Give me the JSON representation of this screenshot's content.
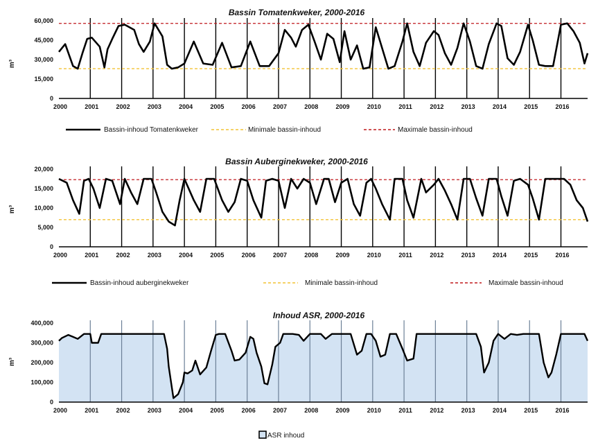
{
  "chart_data": [
    {
      "type": "line",
      "title_prefix": "Bassin ",
      "title_italic": "Tomatenkweker",
      "title_suffix": ", 2000-2016",
      "ylabel": "m³",
      "ylim": [
        0,
        60000
      ],
      "yticks": [
        "0",
        "15,000",
        "30,000",
        "45,000",
        "60,000"
      ],
      "ytick_values": [
        0,
        15000,
        30000,
        45000,
        60000
      ],
      "xlabels": [
        "2000",
        "2001",
        "2002",
        "2003",
        "2004",
        "2005",
        "2006",
        "2007",
        "2008",
        "2009",
        "2010",
        "2011",
        "2012",
        "2013",
        "2014",
        "2015",
        "2016"
      ],
      "xrange": [
        2000,
        2016.85
      ],
      "grid_vertical": true,
      "series": [
        {
          "name": "Bassin-inhoud Tomatenkweker",
          "color": "#000000",
          "style": "solid",
          "x": [
            2000,
            2000.2,
            2000.45,
            2000.6,
            2000.75,
            2000.9,
            2001.05,
            2001.3,
            2001.45,
            2001.55,
            2001.7,
            2001.9,
            2002.1,
            2002.4,
            2002.55,
            2002.7,
            2002.9,
            2003.05,
            2003.3,
            2003.45,
            2003.6,
            2003.8,
            2004.0,
            2004.3,
            2004.6,
            2004.9,
            2005.2,
            2005.5,
            2005.8,
            2006.1,
            2006.4,
            2006.7,
            2007.0,
            2007.2,
            2007.4,
            2007.55,
            2007.75,
            2007.95,
            2008.15,
            2008.35,
            2008.55,
            2008.75,
            2008.95,
            2009.1,
            2009.3,
            2009.5,
            2009.7,
            2009.9,
            2010.1,
            2010.3,
            2010.5,
            2010.7,
            2010.95,
            2011.1,
            2011.3,
            2011.5,
            2011.7,
            2011.95,
            2012.1,
            2012.3,
            2012.5,
            2012.7,
            2012.9,
            2013.1,
            2013.3,
            2013.5,
            2013.7,
            2013.95,
            2014.1,
            2014.3,
            2014.5,
            2014.7,
            2014.95,
            2015.1,
            2015.3,
            2015.5,
            2015.75,
            2016.0,
            2016.2,
            2016.4,
            2016.6,
            2016.75,
            2016.85
          ],
          "y": [
            36000,
            42000,
            25000,
            23000,
            35000,
            46000,
            47000,
            40000,
            24000,
            38000,
            46000,
            56000,
            57000,
            53000,
            42000,
            36000,
            44000,
            58000,
            48000,
            26000,
            23000,
            24000,
            27000,
            44000,
            27000,
            26000,
            43000,
            24000,
            25000,
            44000,
            25000,
            25000,
            35000,
            53000,
            47000,
            40000,
            53000,
            57000,
            44000,
            30000,
            50000,
            46000,
            28000,
            52000,
            30000,
            41000,
            23000,
            24000,
            55000,
            39000,
            23000,
            25000,
            44000,
            58000,
            36000,
            25000,
            43000,
            52000,
            49000,
            35000,
            26000,
            39000,
            58000,
            44000,
            25000,
            23000,
            42000,
            58000,
            56000,
            31000,
            26000,
            36000,
            57000,
            45000,
            26000,
            25000,
            25000,
            57000,
            58000,
            52000,
            43000,
            27000,
            35000
          ]
        },
        {
          "name": "Minimale bassin-inhoud",
          "color": "#f2c233",
          "style": "dashed",
          "constant": 23000
        },
        {
          "name": "Maximale bassin-inhoud",
          "color": "#c0181c",
          "style": "dashed",
          "constant": 58000
        }
      ]
    },
    {
      "type": "line",
      "title_prefix": "Bassin ",
      "title_italic": "Auberginekweker",
      "title_suffix": ", 2000-2016",
      "ylabel": "m³",
      "ylim": [
        0,
        20000
      ],
      "yticks": [
        "0",
        "5,000",
        "10,000",
        "15,000",
        "20,000"
      ],
      "ytick_values": [
        0,
        5000,
        10000,
        15000,
        20000
      ],
      "xlabels": [
        "2000",
        "2001",
        "2002",
        "2003",
        "2004",
        "2005",
        "2006",
        "2007",
        "2008",
        "2009",
        "2010",
        "2011",
        "2012",
        "2013",
        "2014",
        "2015",
        "2016"
      ],
      "xrange": [
        2000,
        2016.85
      ],
      "grid_vertical": true,
      "series": [
        {
          "name": "Bassin-inhoud  auberginekweker",
          "color": "#000000",
          "style": "solid",
          "x": [
            2000,
            2000.25,
            2000.45,
            2000.65,
            2000.8,
            2000.95,
            2001.1,
            2001.3,
            2001.5,
            2001.7,
            2001.95,
            2002.1,
            2002.3,
            2002.5,
            2002.7,
            2002.95,
            2003.1,
            2003.3,
            2003.5,
            2003.7,
            2003.85,
            2004.0,
            2004.3,
            2004.5,
            2004.7,
            2004.95,
            2005.2,
            2005.4,
            2005.6,
            2005.8,
            2006.0,
            2006.2,
            2006.45,
            2006.6,
            2006.8,
            2007.0,
            2007.2,
            2007.4,
            2007.6,
            2007.8,
            2008.0,
            2008.2,
            2008.45,
            2008.6,
            2008.8,
            2009.0,
            2009.2,
            2009.4,
            2009.6,
            2009.8,
            2009.95,
            2010.1,
            2010.3,
            2010.55,
            2010.7,
            2010.95,
            2011.1,
            2011.3,
            2011.55,
            2011.7,
            2011.95,
            2012.1,
            2012.3,
            2012.5,
            2012.7,
            2012.9,
            2013.1,
            2013.3,
            2013.5,
            2013.7,
            2013.95,
            2014.1,
            2014.3,
            2014.5,
            2014.7,
            2014.95,
            2015.1,
            2015.3,
            2015.5,
            2015.7,
            2015.95,
            2016.1,
            2016.3,
            2016.5,
            2016.7,
            2016.85
          ],
          "y": [
            17500,
            16500,
            12000,
            8500,
            17000,
            17500,
            15000,
            10000,
            17500,
            17000,
            11000,
            17500,
            14000,
            11000,
            17500,
            17500,
            14000,
            9000,
            6500,
            5500,
            12000,
            17500,
            12000,
            9000,
            17500,
            17500,
            12000,
            9000,
            11500,
            17500,
            17000,
            12000,
            7500,
            17000,
            17500,
            17000,
            10000,
            17500,
            15000,
            17500,
            16500,
            11000,
            17500,
            17500,
            11500,
            16500,
            17500,
            11000,
            8000,
            16500,
            17500,
            15000,
            11000,
            7000,
            17500,
            17500,
            12000,
            7500,
            17500,
            14000,
            16000,
            17500,
            14500,
            11000,
            7000,
            17500,
            17500,
            12500,
            8000,
            17500,
            17500,
            13000,
            8000,
            17000,
            17500,
            16000,
            12500,
            7000,
            17500,
            17500,
            17500,
            17500,
            16000,
            12000,
            10000,
            6500
          ]
        },
        {
          "name": "Minimale bassin-inhoud",
          "color": "#f2c233",
          "style": "dashed",
          "constant": 7000
        },
        {
          "name": "Maximale bassin-inhoud",
          "color": "#c0181c",
          "style": "dashed",
          "constant": 17300
        }
      ]
    },
    {
      "type": "area",
      "title_prefix": "",
      "title_italic": "Inhoud ASR",
      "title_suffix": ", 2000-2016",
      "ylabel": "m³",
      "ylim": [
        0,
        400000
      ],
      "yticks": [
        "0",
        "100,000",
        "200,000",
        "300,000",
        "400,000"
      ],
      "ytick_values": [
        0,
        100000,
        200000,
        300000,
        400000
      ],
      "xlabels": [
        "2000",
        "2001",
        "2002",
        "2003",
        "2004",
        "2005",
        "2006",
        "2007",
        "2008",
        "2009",
        "2010",
        "2011",
        "2012",
        "2013",
        "2014",
        "2015",
        "2016"
      ],
      "xrange": [
        2000,
        2016.85
      ],
      "grid_vertical": true,
      "legend_label": "ASR inhoud",
      "series": [
        {
          "name": "ASR inhoud",
          "color": "#000000",
          "fill": "#d3e3f3",
          "style": "area",
          "x": [
            2000,
            2000.1,
            2000.3,
            2000.45,
            2000.6,
            2000.8,
            2001.0,
            2001.05,
            2001.25,
            2001.35,
            2001.55,
            2002.0,
            2002.5,
            2003.0,
            2003.35,
            2003.45,
            2003.5,
            2003.65,
            2003.8,
            2003.95,
            2004.0,
            2004.1,
            2004.25,
            2004.35,
            2004.5,
            2004.7,
            2004.85,
            2005.0,
            2005.1,
            2005.3,
            2005.5,
            2005.6,
            2005.75,
            2005.95,
            2006.1,
            2006.2,
            2006.3,
            2006.45,
            2006.55,
            2006.65,
            2006.8,
            2006.9,
            2007.05,
            2007.15,
            2007.25,
            2007.45,
            2007.65,
            2007.8,
            2008.0,
            2008.35,
            2008.5,
            2008.7,
            2008.85,
            2009.0,
            2009.3,
            2009.5,
            2009.65,
            2009.8,
            2009.95,
            2010.1,
            2010.25,
            2010.4,
            2010.55,
            2010.75,
            2010.95,
            2011.1,
            2011.3,
            2011.4,
            2011.55,
            2011.65,
            2011.75,
            2011.9,
            2012.1,
            2012.5,
            2013.0,
            2013.3,
            2013.45,
            2013.55,
            2013.7,
            2013.85,
            2014.0,
            2014.2,
            2014.4,
            2014.6,
            2014.8,
            2015.1,
            2015.3,
            2015.45,
            2015.6,
            2015.7,
            2015.85,
            2016.0,
            2016.2,
            2016.5,
            2016.75,
            2016.85
          ],
          "y": [
            310000,
            325000,
            340000,
            330000,
            320000,
            345000,
            345000,
            300000,
            300000,
            345000,
            345000,
            345000,
            345000,
            345000,
            345000,
            270000,
            180000,
            20000,
            40000,
            100000,
            150000,
            145000,
            160000,
            210000,
            140000,
            175000,
            260000,
            340000,
            345000,
            345000,
            260000,
            210000,
            215000,
            250000,
            330000,
            320000,
            250000,
            180000,
            95000,
            90000,
            190000,
            280000,
            300000,
            345000,
            345000,
            345000,
            340000,
            310000,
            345000,
            345000,
            320000,
            345000,
            345000,
            345000,
            345000,
            240000,
            260000,
            345000,
            345000,
            310000,
            230000,
            240000,
            345000,
            345000,
            270000,
            210000,
            220000,
            345000,
            345000,
            345000,
            345000,
            345000,
            345000,
            345000,
            345000,
            345000,
            280000,
            150000,
            200000,
            310000,
            345000,
            320000,
            345000,
            340000,
            345000,
            345000,
            345000,
            200000,
            125000,
            150000,
            240000,
            345000,
            345000,
            345000,
            345000,
            310000
          ]
        }
      ]
    }
  ],
  "legends": [
    {
      "items": [
        "Bassin-inhoud Tomatenkweker",
        "Minimale bassin-inhoud",
        "Maximale bassin-inhoud"
      ]
    },
    {
      "items": [
        "Bassin-inhoud  auberginekweker",
        "Minimale bassin-inhoud",
        "Maximale bassin-inhoud"
      ]
    },
    {
      "items": [
        "ASR inhoud"
      ]
    }
  ]
}
